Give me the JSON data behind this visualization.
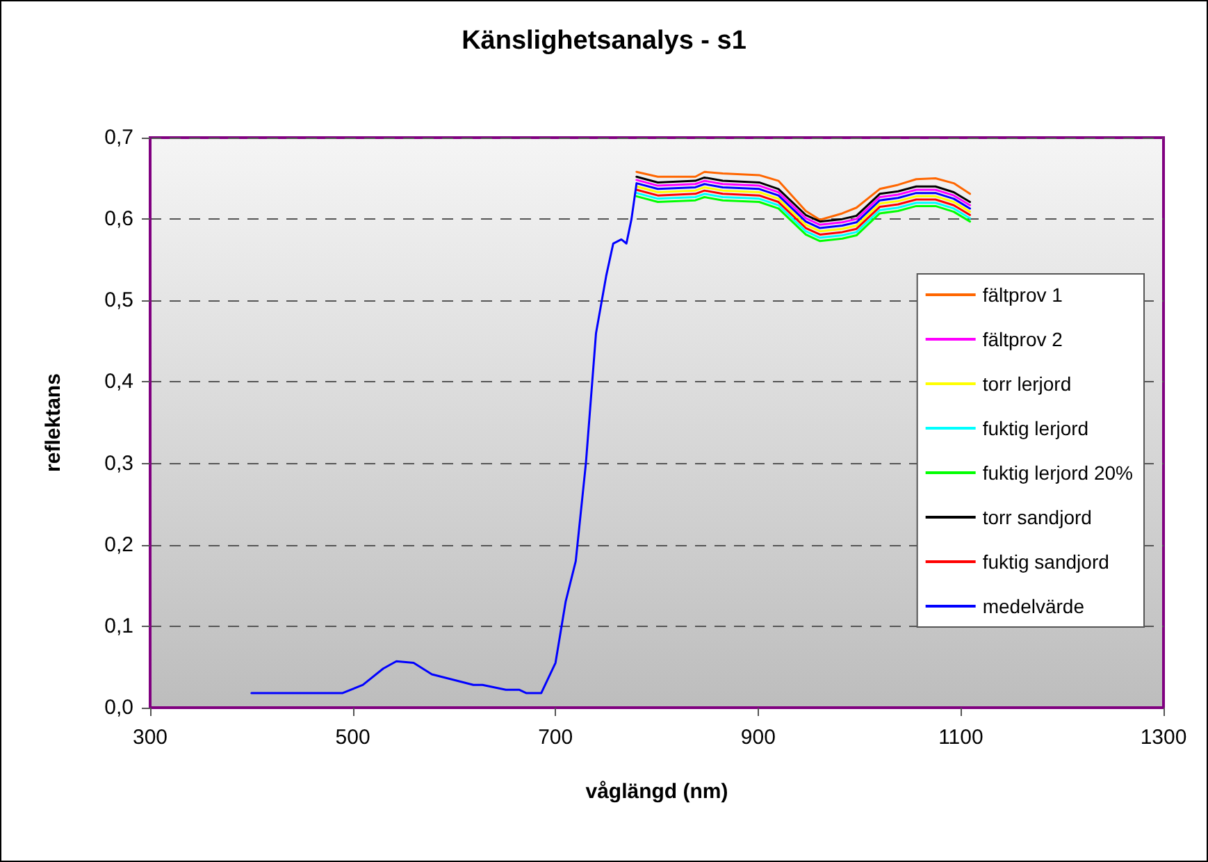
{
  "chart_data": {
    "type": "line",
    "title": "Känslighetsanalys - s1",
    "xlabel": "våglängd (nm)",
    "ylabel": "reflektans",
    "x": [
      400,
      490,
      510,
      530,
      543,
      560,
      578,
      619,
      628,
      651,
      664,
      671,
      686,
      700,
      710,
      720,
      730,
      740,
      750,
      757,
      765,
      770,
      775,
      780,
      801,
      838,
      847,
      865,
      901,
      920,
      947,
      961,
      983,
      997,
      1020,
      1038,
      1056,
      1075,
      1093,
      1109
    ],
    "series": [
      {
        "name": "fältprov 1",
        "color": "#ff6600",
        "values": [
          null,
          null,
          null,
          null,
          null,
          null,
          null,
          null,
          null,
          null,
          null,
          null,
          null,
          null,
          null,
          null,
          null,
          null,
          null,
          null,
          null,
          null,
          null,
          0.658,
          0.652,
          0.652,
          0.658,
          0.656,
          0.654,
          0.647,
          0.61,
          0.599,
          0.607,
          0.614,
          0.637,
          0.642,
          0.649,
          0.65,
          0.644,
          0.631
        ]
      },
      {
        "name": "fältprov 2",
        "color": "#ff00ff",
        "values": [
          null,
          null,
          null,
          null,
          null,
          null,
          null,
          null,
          null,
          null,
          null,
          null,
          null,
          null,
          null,
          null,
          null,
          null,
          null,
          null,
          null,
          null,
          null,
          0.648,
          0.641,
          0.643,
          0.647,
          0.643,
          0.641,
          0.633,
          0.601,
          0.593,
          0.596,
          0.6,
          0.627,
          0.63,
          0.636,
          0.636,
          0.629,
          0.617
        ]
      },
      {
        "name": "torr lerjord",
        "color": "#ffff00",
        "values": [
          null,
          null,
          null,
          null,
          null,
          null,
          null,
          null,
          null,
          null,
          null,
          null,
          null,
          null,
          null,
          null,
          null,
          null,
          null,
          null,
          null,
          null,
          null,
          0.64,
          0.633,
          0.635,
          0.639,
          0.635,
          0.633,
          0.625,
          0.593,
          0.585,
          0.588,
          0.592,
          0.619,
          0.622,
          0.628,
          0.628,
          0.621,
          0.609
        ]
      },
      {
        "name": "fuktig lerjord",
        "color": "#00ffff",
        "values": [
          null,
          null,
          null,
          null,
          null,
          null,
          null,
          null,
          null,
          null,
          null,
          null,
          null,
          null,
          null,
          null,
          null,
          null,
          null,
          null,
          null,
          null,
          null,
          0.632,
          0.625,
          0.627,
          0.631,
          0.627,
          0.625,
          0.617,
          0.585,
          0.577,
          0.58,
          0.584,
          0.611,
          0.614,
          0.62,
          0.62,
          0.613,
          0.601
        ]
      },
      {
        "name": "fuktig lerjord 20%",
        "color": "#00ff00",
        "values": [
          null,
          null,
          null,
          null,
          null,
          null,
          null,
          null,
          null,
          null,
          null,
          null,
          null,
          null,
          null,
          null,
          null,
          null,
          null,
          null,
          null,
          null,
          null,
          0.628,
          0.621,
          0.623,
          0.627,
          0.623,
          0.621,
          0.613,
          0.581,
          0.573,
          0.576,
          0.58,
          0.607,
          0.61,
          0.616,
          0.616,
          0.609,
          0.597
        ]
      },
      {
        "name": "torr sandjord",
        "color": "#000000",
        "values": [
          null,
          null,
          null,
          null,
          null,
          null,
          null,
          null,
          null,
          null,
          null,
          null,
          null,
          null,
          null,
          null,
          null,
          null,
          null,
          null,
          null,
          null,
          null,
          0.652,
          0.645,
          0.647,
          0.651,
          0.647,
          0.645,
          0.637,
          0.605,
          0.597,
          0.6,
          0.604,
          0.631,
          0.634,
          0.64,
          0.64,
          0.633,
          0.621
        ]
      },
      {
        "name": "fuktig sandjord",
        "color": "#ff0000",
        "values": [
          null,
          null,
          null,
          null,
          null,
          null,
          null,
          null,
          null,
          null,
          null,
          null,
          null,
          null,
          null,
          null,
          null,
          null,
          null,
          null,
          null,
          null,
          null,
          0.636,
          0.629,
          0.631,
          0.635,
          0.631,
          0.629,
          0.621,
          0.589,
          0.581,
          0.584,
          0.588,
          0.615,
          0.618,
          0.624,
          0.624,
          0.617,
          0.605
        ]
      },
      {
        "name": "medelvärde",
        "color": "#0000ff",
        "values": [
          0.018,
          0.018,
          0.028,
          0.048,
          0.057,
          0.055,
          0.041,
          0.028,
          0.028,
          0.022,
          0.022,
          0.018,
          0.018,
          0.055,
          0.13,
          0.18,
          0.3,
          0.46,
          0.53,
          0.57,
          0.575,
          0.57,
          0.6,
          0.644,
          0.637,
          0.639,
          0.643,
          0.639,
          0.637,
          0.629,
          0.597,
          0.589,
          0.592,
          0.596,
          0.623,
          0.626,
          0.632,
          0.632,
          0.625,
          0.613
        ]
      }
    ],
    "xlim": [
      300,
      1300
    ],
    "xticks": [
      300,
      500,
      700,
      900,
      1100,
      1300
    ],
    "ylim": [
      0,
      0.7
    ],
    "yticks": [
      {
        "value": 0,
        "label": "0,0"
      },
      {
        "value": 0.1,
        "label": "0,1"
      },
      {
        "value": 0.2,
        "label": "0,2"
      },
      {
        "value": 0.3,
        "label": "0,3"
      },
      {
        "value": 0.4,
        "label": "0,4"
      },
      {
        "value": 0.5,
        "label": "0,5"
      },
      {
        "value": 0.6,
        "label": "0,6"
      },
      {
        "value": 0.7,
        "label": "0,7"
      }
    ],
    "grid": "y",
    "legend": "right",
    "marker": "none",
    "line_style": "solid"
  }
}
